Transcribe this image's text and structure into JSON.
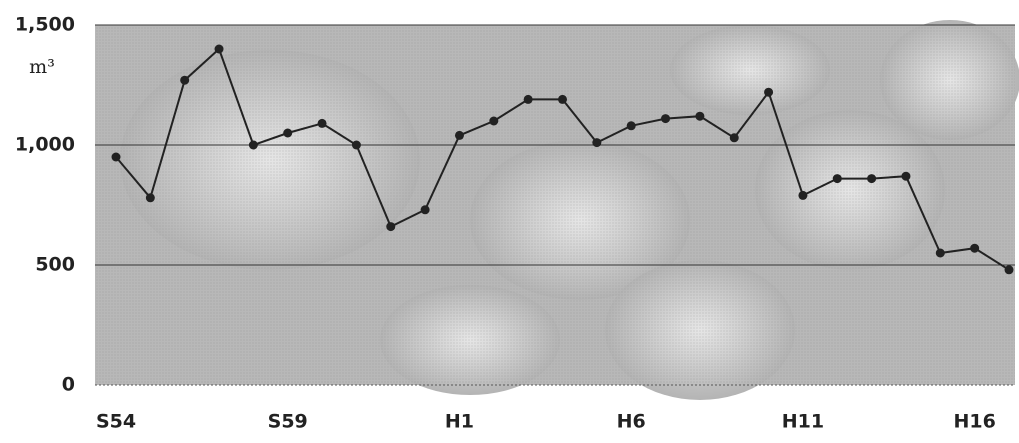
{
  "chart_data": {
    "type": "line",
    "y_unit": "m³",
    "categories": [
      "S54",
      null,
      null,
      null,
      null,
      "S59",
      null,
      null,
      null,
      null,
      "H1",
      null,
      null,
      null,
      null,
      "H6",
      null,
      null,
      null,
      null,
      "H11",
      null,
      null,
      null,
      null,
      "H16",
      null
    ],
    "series": [
      {
        "color": "#222222",
        "values": [
          950,
          780,
          1270,
          1400,
          1000,
          1050,
          1090,
          1000,
          660,
          730,
          1040,
          1100,
          1190,
          1190,
          1010,
          1080,
          1110,
          1120,
          1030,
          1220,
          790,
          860,
          860,
          870,
          550,
          570,
          480
        ]
      }
    ],
    "ylim": [
      0,
      1500
    ],
    "yticks": [
      0,
      500,
      {
        "value": 1000,
        "label": "1,000"
      },
      {
        "value": 1500,
        "label": "1,500"
      }
    ],
    "grid": true
  }
}
